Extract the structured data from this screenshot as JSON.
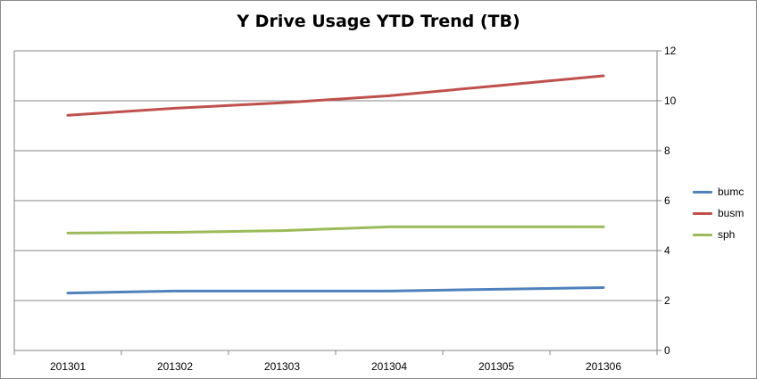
{
  "chart_data": {
    "type": "line",
    "title": "Y Drive Usage YTD Trend (TB)",
    "xlabel": "",
    "ylabel": "",
    "categories": [
      "201301",
      "201302",
      "201303",
      "201304",
      "201305",
      "201306"
    ],
    "ylim": [
      0,
      12
    ],
    "yticks": [
      0,
      2,
      4,
      6,
      8,
      10,
      12
    ],
    "y_axis_side": "right",
    "grid": true,
    "legend_position": "right",
    "series": [
      {
        "name": "bumc",
        "color": "#4f81bd",
        "values": [
          2.3,
          2.38,
          2.38,
          2.38,
          2.45,
          2.52
        ]
      },
      {
        "name": "busm",
        "color": "#c0504d",
        "values": [
          9.42,
          9.7,
          9.92,
          10.2,
          10.6,
          11.0
        ]
      },
      {
        "name": "sph",
        "color": "#9bbb59",
        "values": [
          4.7,
          4.73,
          4.8,
          4.95,
          4.95,
          4.95
        ]
      }
    ]
  }
}
